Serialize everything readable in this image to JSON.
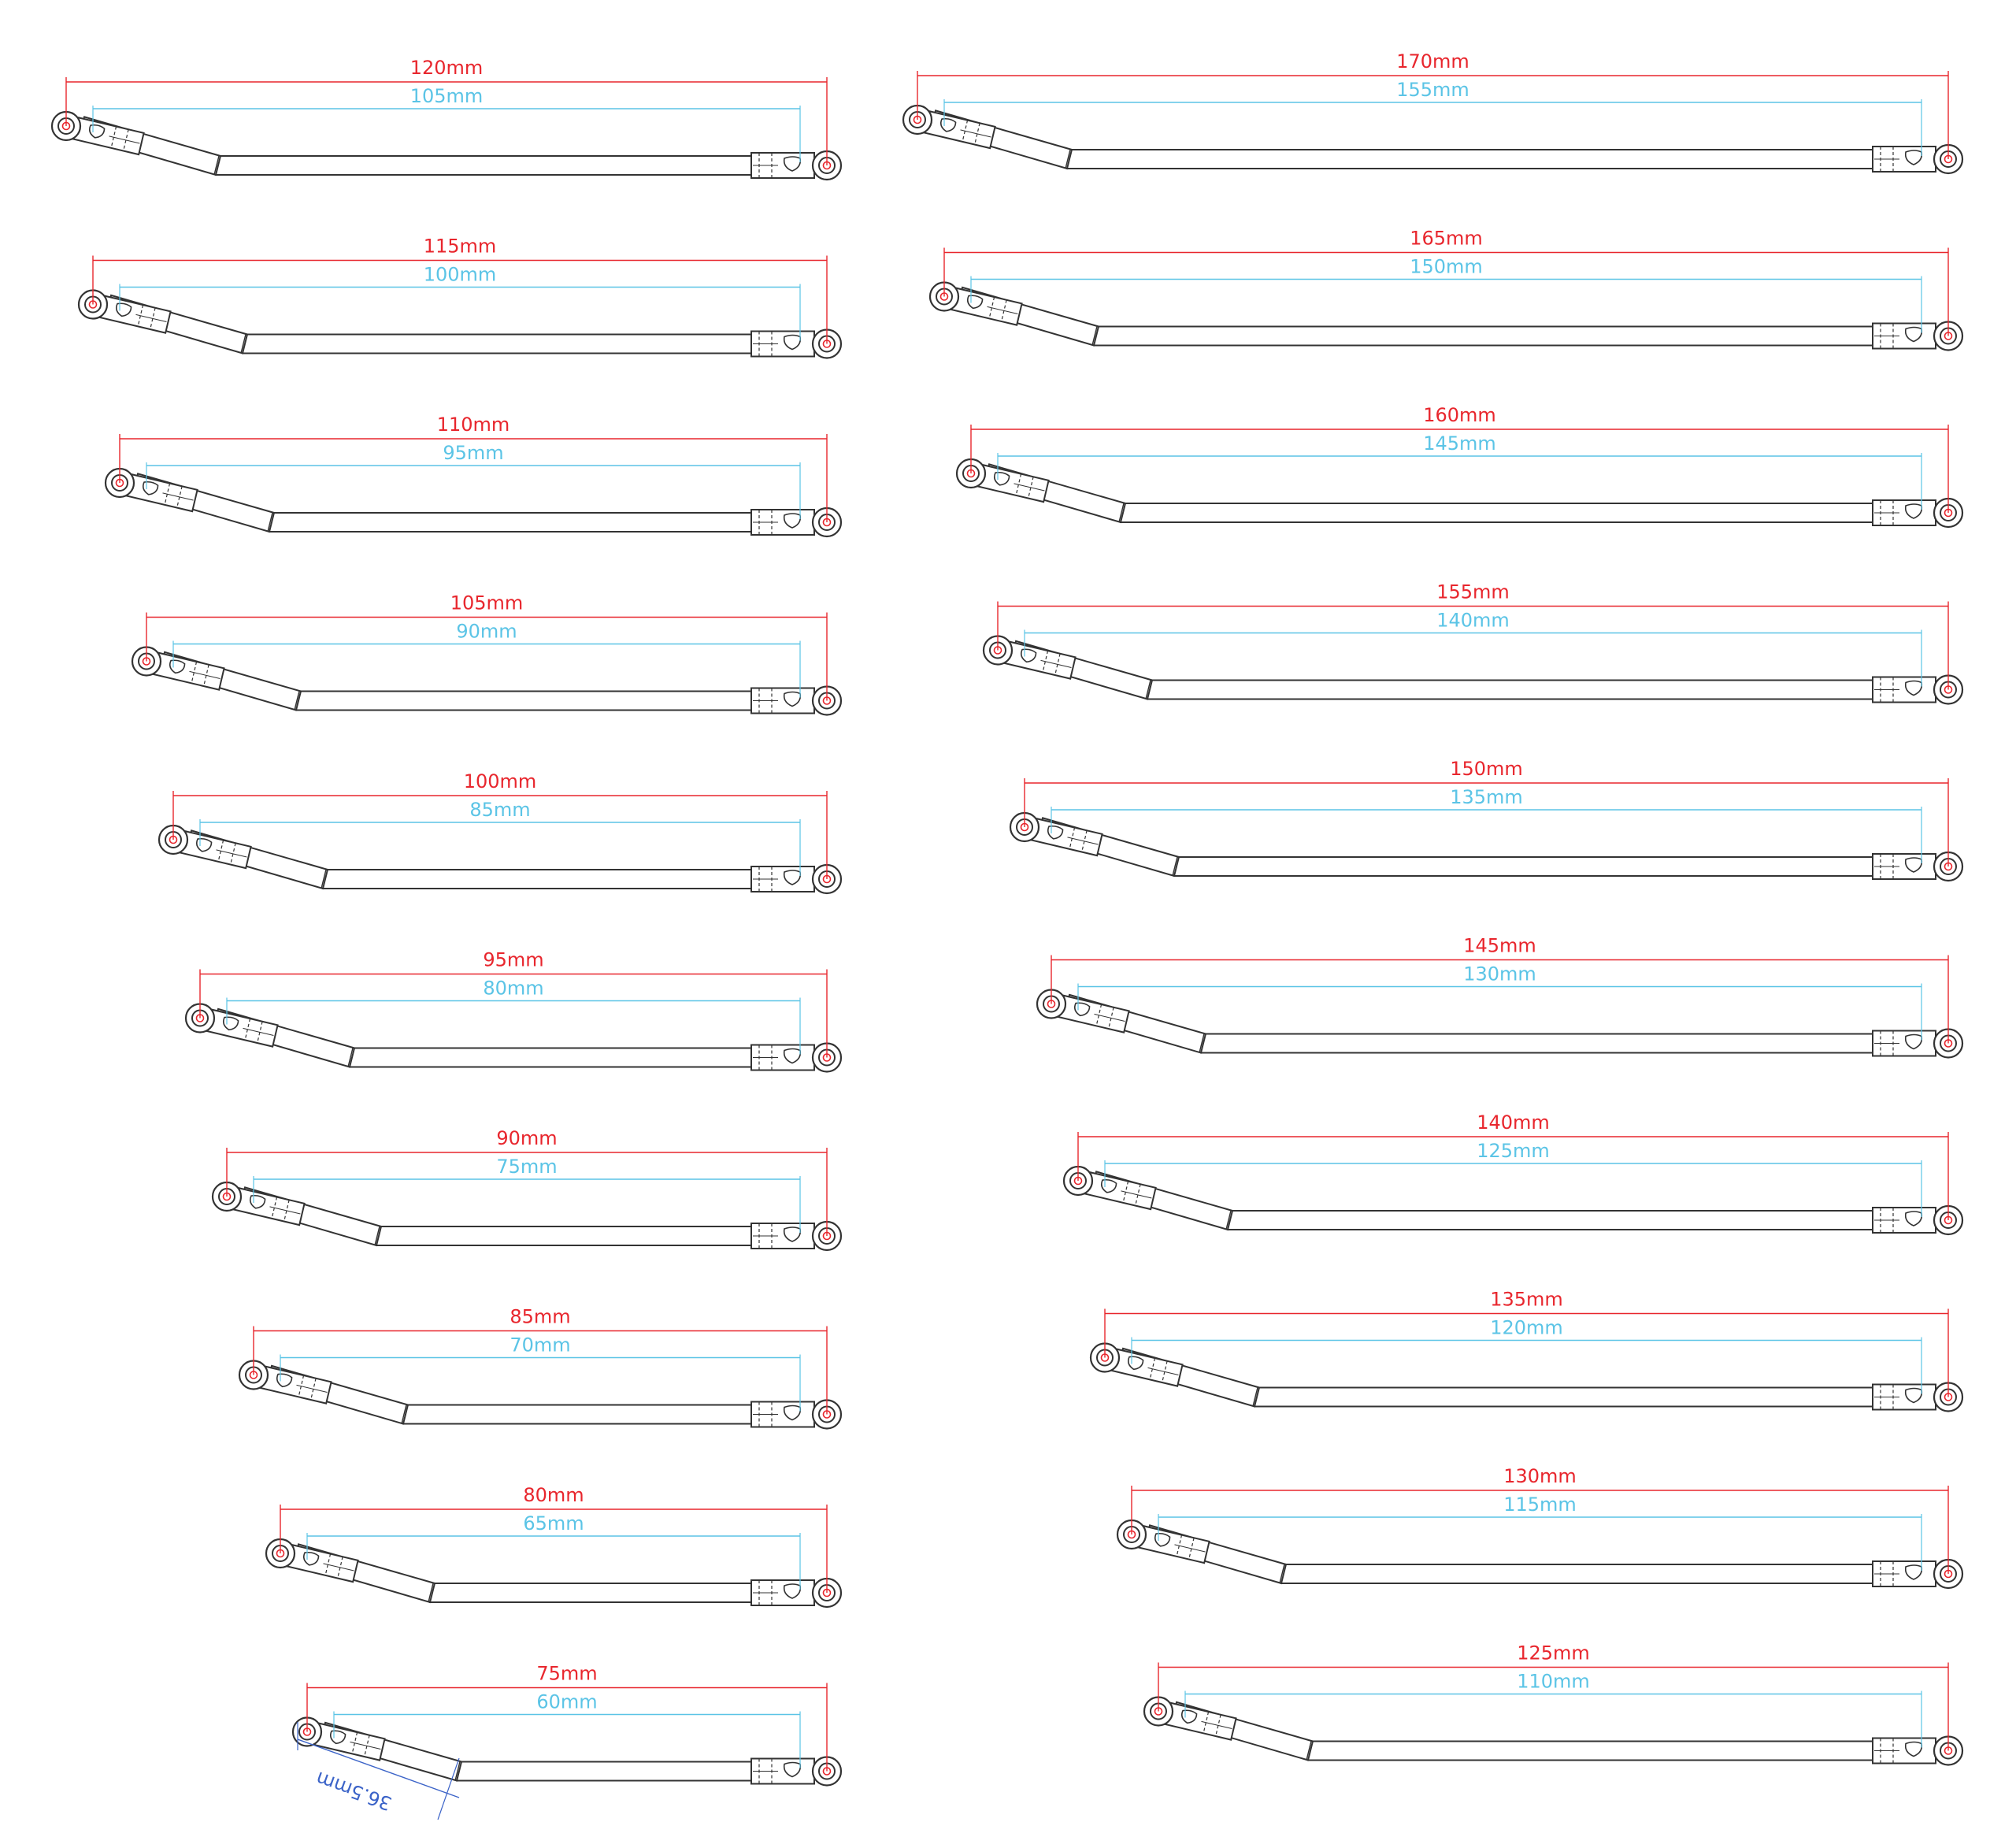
{
  "colors": {
    "outer_dimension": "#e8262d",
    "inner_dimension": "#5bc4e6",
    "link_stroke": "#333333",
    "note_dimension": "#3b63c8"
  },
  "left_column": {
    "links": [
      {
        "outer": "120mm",
        "inner": "105mm"
      },
      {
        "outer": "115mm",
        "inner": "100mm"
      },
      {
        "outer": "110mm",
        "inner": "95mm"
      },
      {
        "outer": "105mm",
        "inner": "90mm"
      },
      {
        "outer": "100mm",
        "inner": "85mm"
      },
      {
        "outer": "95mm",
        "inner": "80mm"
      },
      {
        "outer": "90mm",
        "inner": "75mm"
      },
      {
        "outer": "85mm",
        "inner": "70mm"
      },
      {
        "outer": "80mm",
        "inner": "65mm"
      },
      {
        "outer": "75mm",
        "inner": "60mm"
      }
    ]
  },
  "right_column": {
    "links": [
      {
        "outer": "170mm",
        "inner": "155mm"
      },
      {
        "outer": "165mm",
        "inner": "150mm"
      },
      {
        "outer": "160mm",
        "inner": "145mm"
      },
      {
        "outer": "155mm",
        "inner": "140mm"
      },
      {
        "outer": "150mm",
        "inner": "135mm"
      },
      {
        "outer": "145mm",
        "inner": "130mm"
      },
      {
        "outer": "140mm",
        "inner": "125mm"
      },
      {
        "outer": "135mm",
        "inner": "120mm"
      },
      {
        "outer": "130mm",
        "inner": "115mm"
      },
      {
        "outer": "125mm",
        "inner": "110mm"
      }
    ]
  },
  "bend_dimension": {
    "label": "36.5mm"
  }
}
